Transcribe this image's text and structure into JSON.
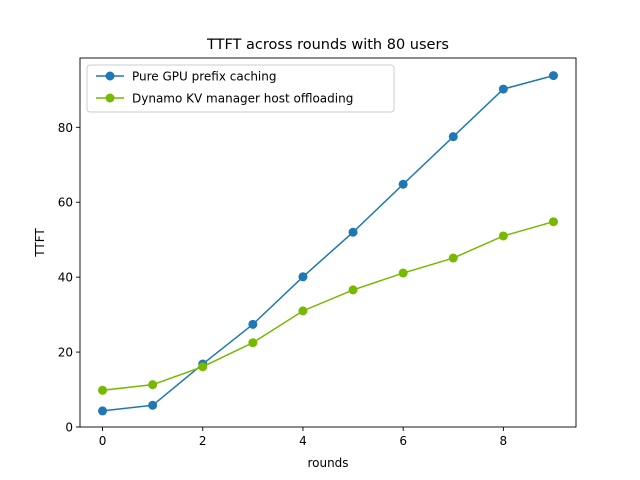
{
  "chart_data": {
    "type": "line",
    "title": "TTFT across rounds with 80 users",
    "xlabel": "rounds",
    "ylabel": "TTFT",
    "x": [
      0,
      1,
      2,
      3,
      4,
      5,
      6,
      7,
      8,
      9
    ],
    "xlim": [
      -0.45,
      9.45
    ],
    "ylim": [
      0,
      98.5
    ],
    "xticks": [
      0,
      2,
      4,
      6,
      8
    ],
    "yticks": [
      0,
      20,
      40,
      60,
      80
    ],
    "grid": false,
    "legend_position": "upper-left",
    "series": [
      {
        "name": "Pure GPU prefix caching",
        "color": "#1f77b4",
        "marker": "circle",
        "values": [
          4.3,
          5.8,
          16.8,
          27.4,
          40.1,
          52.0,
          64.8,
          77.5,
          90.2,
          93.8
        ]
      },
      {
        "name": "Dynamo KV manager host offloading",
        "color": "#76b900",
        "marker": "circle",
        "values": [
          9.8,
          11.3,
          16.1,
          22.5,
          31.0,
          36.6,
          41.1,
          45.1,
          51.0,
          54.8
        ]
      }
    ]
  }
}
